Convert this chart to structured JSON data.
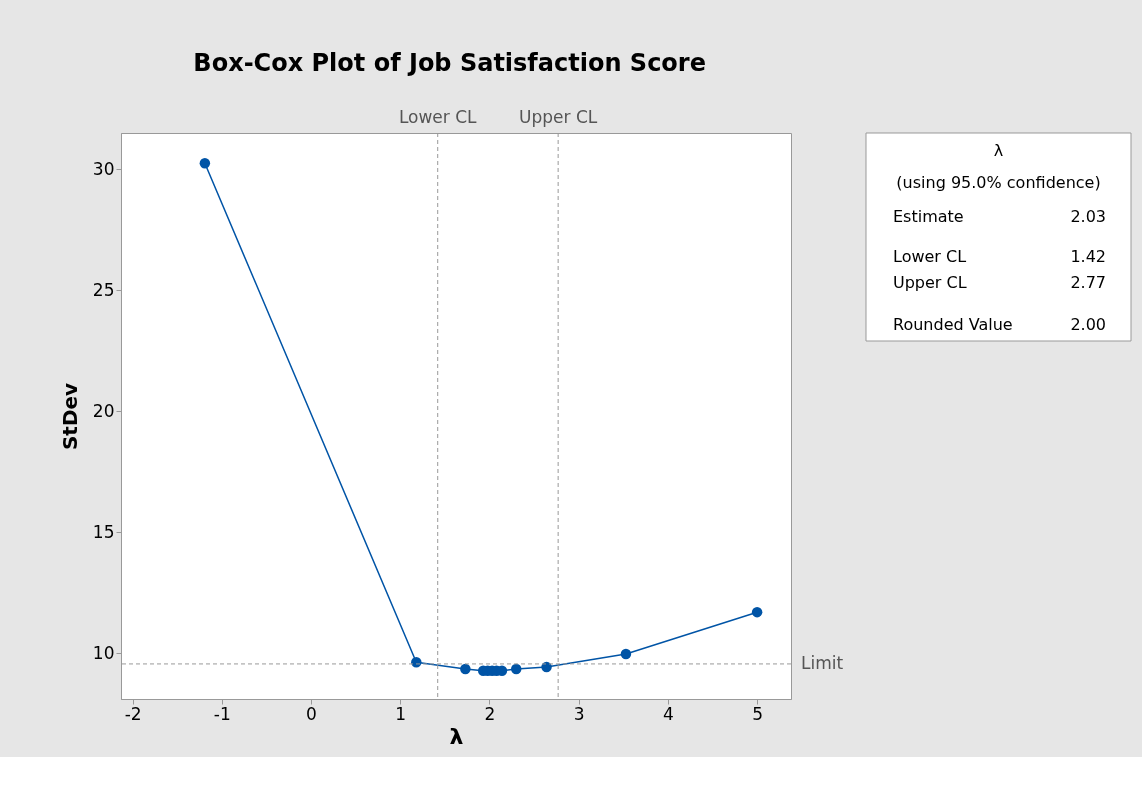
{
  "chart_data": {
    "type": "line",
    "title": "Box-Cox Plot of Job Satisfaction Score",
    "xlabel": "λ",
    "ylabel": "StDev",
    "x": [
      -1.19,
      1.18,
      1.73,
      1.93,
      1.98,
      2.03,
      2.08,
      2.14,
      2.3,
      2.64,
      3.53,
      5.0
    ],
    "series": [
      {
        "color": "#0054a6",
        "values": [
          30.25,
          9.62,
          9.34,
          9.27,
          9.27,
          9.27,
          9.27,
          9.27,
          9.34,
          9.42,
          9.96,
          11.69
        ]
      }
    ],
    "xlim": [
      -2.13,
      5.38
    ],
    "ylim": [
      8.1,
      31.5
    ],
    "xticks": [
      -2,
      -1,
      0,
      1,
      2,
      3,
      4,
      5
    ],
    "yticks": [
      10,
      15,
      20,
      25,
      30
    ],
    "ref_lines": [
      {
        "axis": "x",
        "value": 1.42,
        "label": "Lower CL",
        "color": "#999999",
        "line_style": "dashed"
      },
      {
        "axis": "x",
        "value": 2.77,
        "label": "Upper CL",
        "color": "#999999",
        "line_style": "dashed"
      },
      {
        "axis": "y",
        "value": 9.55,
        "label": "Limit",
        "color": "#999999",
        "line_style": "dashed"
      }
    ],
    "annotations": [
      "λ",
      "(using 95.0% confidence)",
      "Estimate 2.03",
      "Lower CL 1.42",
      "Upper CL 2.77",
      "Rounded Value 2.00"
    ],
    "marker": "circle",
    "line_style": "solid",
    "grid": false
  }
}
